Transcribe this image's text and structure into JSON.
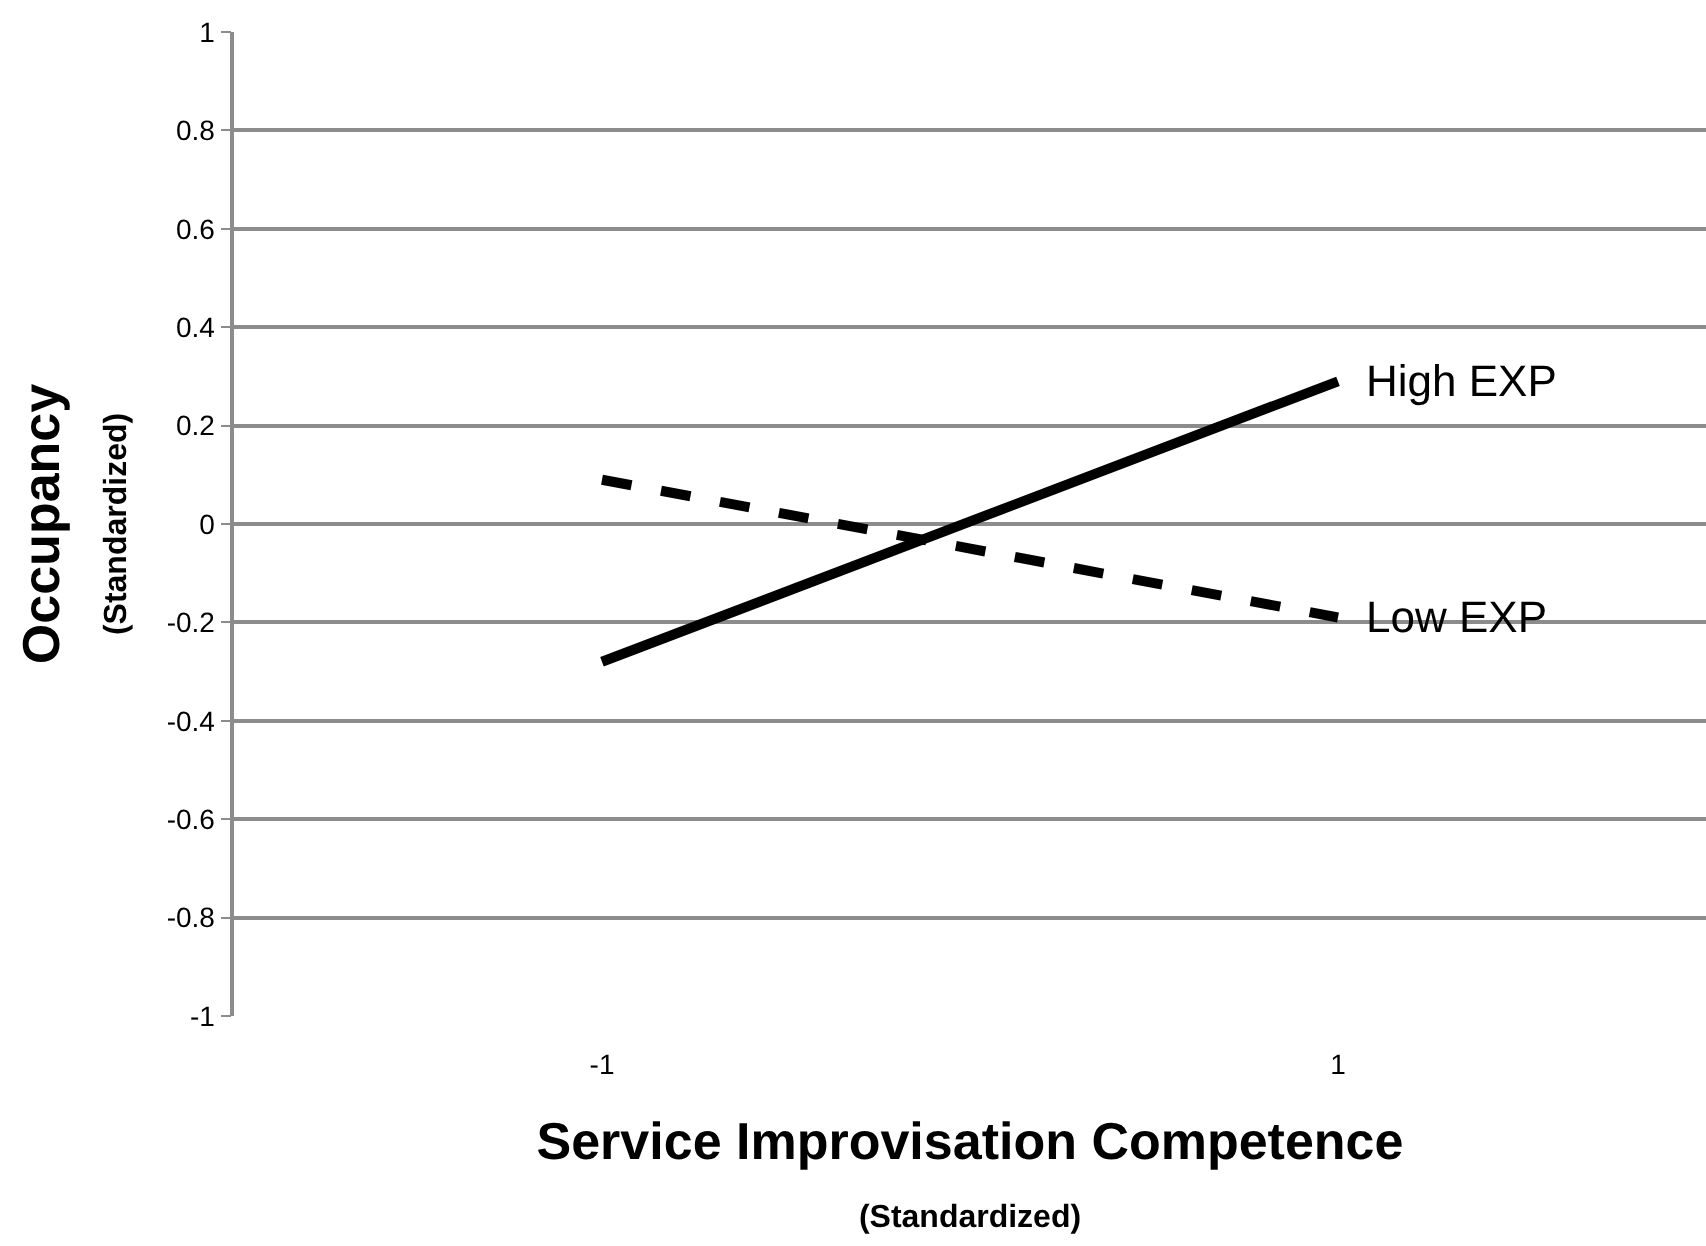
{
  "chart_data": {
    "type": "line",
    "xlabel": "Service Improvisation Competence\n(Standardized)",
    "ylabel": "Occupancy\n(Standardized)",
    "categories": [
      "-1",
      "1"
    ],
    "series": [
      {
        "name": "High EXP",
        "color": "#000000",
        "line_style": "solid",
        "values": [
          -0.28,
          0.29
        ]
      },
      {
        "name": "Low EXP",
        "color": "#000000",
        "line_style": "dashed",
        "values": [
          0.09,
          -0.19
        ]
      }
    ],
    "ylim": [
      -1,
      1
    ],
    "yticks": [
      -1,
      -0.8,
      -0.6,
      -0.4,
      -0.2,
      0,
      0.2,
      0.4,
      0.6,
      0.8,
      1
    ],
    "grid": "y",
    "legend": false,
    "marker": "none"
  }
}
